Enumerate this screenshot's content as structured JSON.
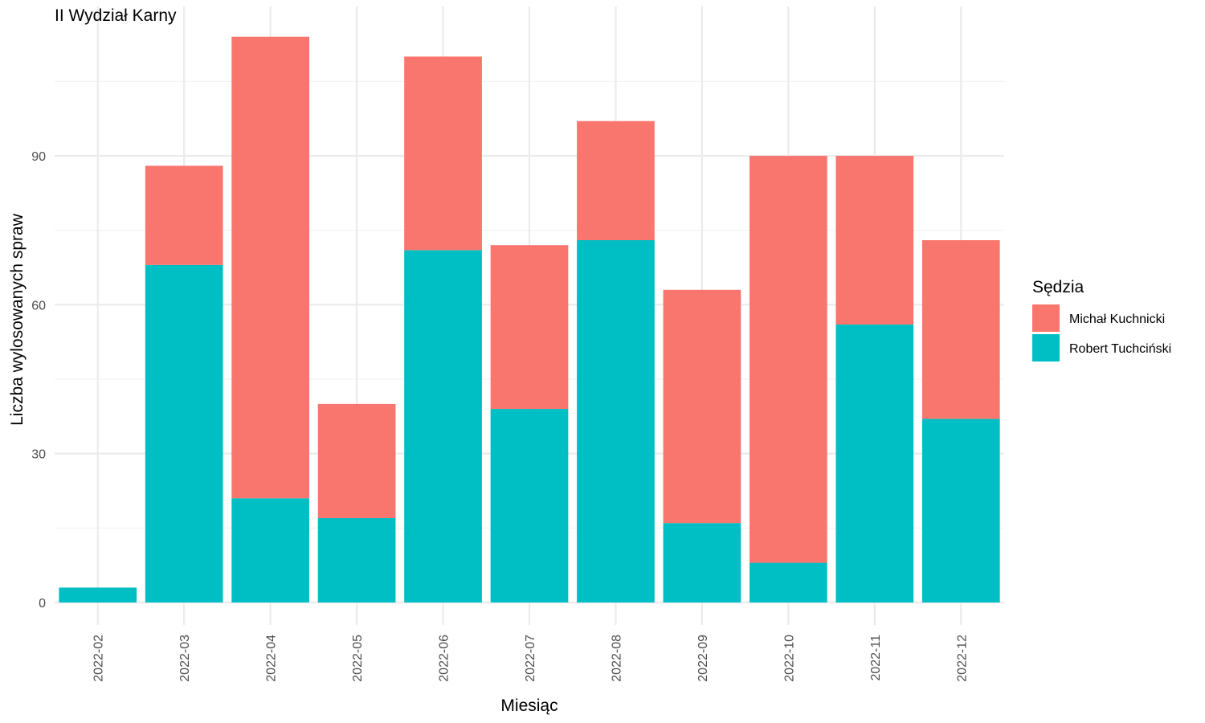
{
  "chart_data": {
    "type": "bar",
    "stacked": true,
    "title": "II Wydział Karny",
    "xlabel": "Miesiąc",
    "ylabel": "Liczba wylosowanych spraw",
    "categories": [
      "2022-02",
      "2022-03",
      "2022-04",
      "2022-05",
      "2022-06",
      "2022-07",
      "2022-08",
      "2022-09",
      "2022-10",
      "2022-11",
      "2022-12"
    ],
    "series": [
      {
        "name": "Robert Tuchciński",
        "color": "#00BFC4",
        "values": [
          3,
          68,
          21,
          17,
          71,
          39,
          73,
          16,
          8,
          56,
          37
        ]
      },
      {
        "name": "Michał Kuchnicki",
        "color": "#F8766D",
        "values": [
          0,
          20,
          93,
          23,
          39,
          33,
          24,
          47,
          82,
          34,
          36
        ]
      }
    ],
    "yticks": [
      0,
      30,
      60,
      90
    ],
    "ylim": [
      0,
      120
    ],
    "grid": true,
    "legend": {
      "title": "Sędzia",
      "position": "right",
      "order": [
        "Michał Kuchnicki",
        "Robert Tuchciński"
      ]
    }
  }
}
